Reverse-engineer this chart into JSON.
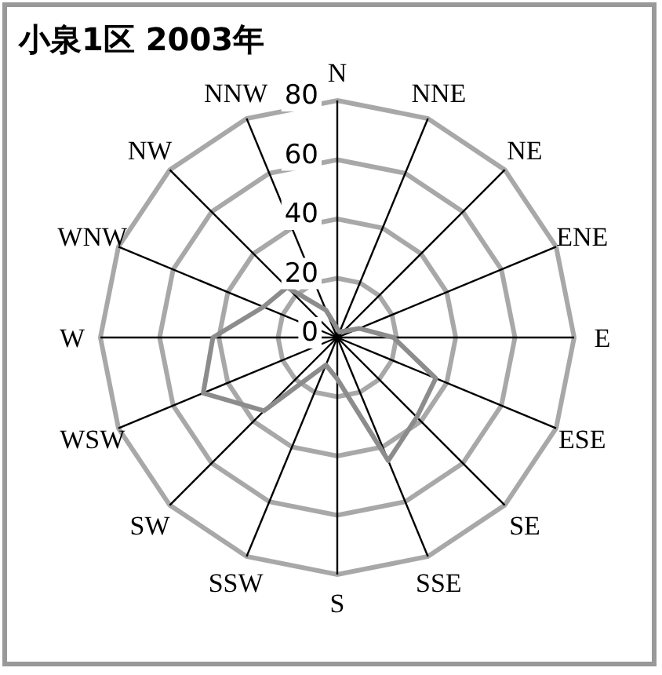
{
  "chart_data": {
    "type": "radar",
    "title": "小泉1区 2003年",
    "categories": [
      "N",
      "NNE",
      "NE",
      "ENE",
      "E",
      "ESE",
      "SE",
      "SSE",
      "S",
      "SSW",
      "SW",
      "WSW",
      "W",
      "WNW",
      "NW",
      "NNW"
    ],
    "series": [
      {
        "color": "#8c8c8c",
        "values": [
          3,
          2,
          3,
          8,
          19,
          36,
          38,
          45,
          14,
          10,
          35,
          49,
          42,
          27,
          24,
          10
        ]
      }
    ],
    "ylim": [
      0,
      80
    ],
    "yticks": [
      0,
      20,
      40,
      60,
      80
    ],
    "grid": true,
    "marker": "none"
  }
}
